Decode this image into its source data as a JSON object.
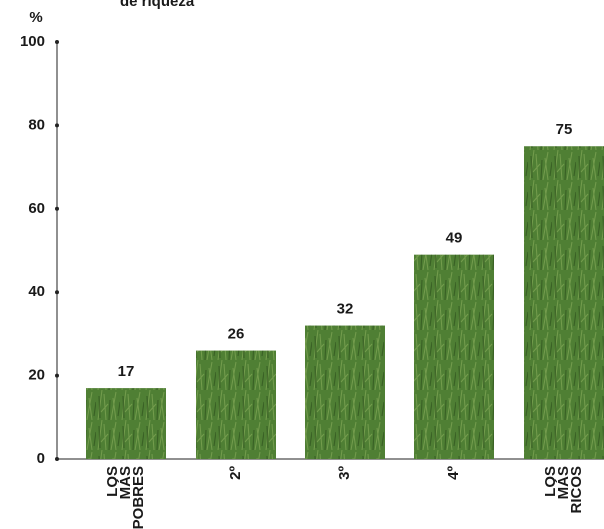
{
  "chart_data": {
    "type": "bar",
    "title": "de riqueza",
    "y_label": "%",
    "categories": [
      "LOS MÁS POBRES",
      "2º",
      "3º",
      "4º",
      "LOS MÁS RICOS"
    ],
    "values": [
      17,
      26,
      32,
      49,
      75
    ],
    "color": "#4f7f34",
    "ylim": [
      0,
      100
    ],
    "yticks": [
      0,
      20,
      40,
      60,
      80,
      100
    ]
  }
}
